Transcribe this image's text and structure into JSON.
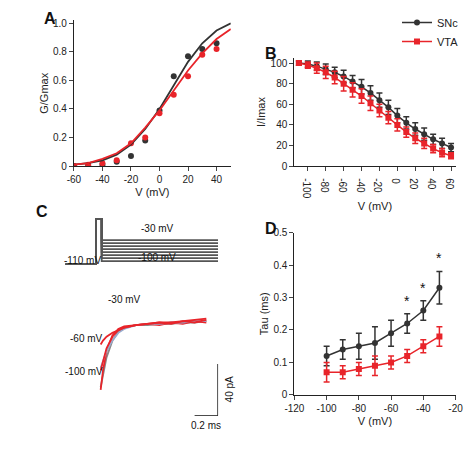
{
  "chart_data": [
    {
      "type": "scatter",
      "title": "A",
      "x_label": "V (mV)",
      "y_label": "G/Gmax",
      "xlim": [
        -60,
        50
      ],
      "xticks": [
        -60,
        -40,
        -20,
        0,
        20,
        40
      ],
      "ylim": [
        0,
        1.02
      ],
      "yticks": [
        0,
        0.2,
        0.4,
        0.6,
        0.8,
        {
          "value": 1,
          "label": "1.0"
        }
      ],
      "series": [
        {
          "name": "SNc",
          "color": "#333333",
          "marker": "circle",
          "x": [
            -60,
            -50,
            -40,
            -30,
            -20,
            -10,
            0,
            10,
            20,
            30,
            40
          ],
          "values": [
            0,
            0,
            0.01,
            0.03,
            0.07,
            0.18,
            0.39,
            0.63,
            0.77,
            0.82,
            0.86
          ]
        },
        {
          "name": "VTA",
          "color": "#e8242a",
          "marker": "circle",
          "x": [
            -60,
            -50,
            -40,
            -30,
            -20,
            -10,
            0,
            10,
            20,
            30,
            40
          ],
          "values": [
            0,
            0.01,
            0.02,
            0.04,
            0.16,
            0.2,
            0.37,
            0.5,
            0.63,
            0.78,
            0.82
          ]
        },
        {
          "color": "#333333",
          "line_style": "solid",
          "x": [
            -60,
            -50,
            -40,
            -30,
            -20,
            -10,
            0,
            10,
            20,
            30,
            40,
            50
          ],
          "values": [
            0.01,
            0.02,
            0.04,
            0.08,
            0.15,
            0.26,
            0.4,
            0.57,
            0.73,
            0.86,
            0.95,
            1.0
          ]
        },
        {
          "color": "#e8242a",
          "line_style": "solid",
          "x": [
            -60,
            -50,
            -40,
            -30,
            -20,
            -10,
            0,
            10,
            20,
            30,
            40,
            50
          ],
          "values": [
            0.01,
            0.02,
            0.05,
            0.09,
            0.16,
            0.27,
            0.39,
            0.53,
            0.67,
            0.79,
            0.89,
            0.96
          ]
        }
      ]
    },
    {
      "type": "line",
      "title": "B",
      "x_label": "V (mV)",
      "y_label": "I/Imax",
      "legend": "upper right",
      "xlim": [
        -115,
        65
      ],
      "xticks": [
        -100,
        -80,
        -60,
        -40,
        -20,
        0,
        20,
        40,
        60
      ],
      "ylim": [
        0,
        105
      ],
      "yticks": [
        0,
        20,
        40,
        60,
        80,
        100
      ],
      "x": [
        -110,
        -100,
        -90,
        -80,
        -70,
        -60,
        -50,
        -40,
        -30,
        -20,
        -10,
        0,
        10,
        20,
        30,
        40,
        50,
        60
      ],
      "series": [
        {
          "name": "SNc",
          "color": "#333333",
          "marker": "circle",
          "line_style": "solid",
          "values": [
            100,
            99,
            97,
            94,
            91,
            87,
            82,
            77,
            71,
            64,
            57,
            49,
            42,
            36,
            31,
            26,
            22,
            18
          ],
          "errors": [
            2,
            3,
            4,
            5,
            5,
            6,
            6,
            7,
            7,
            7,
            7,
            7,
            6,
            6,
            6,
            5,
            5,
            4
          ]
        },
        {
          "name": "VTA",
          "color": "#e8242a",
          "marker": "square",
          "line_style": "solid",
          "values": [
            100,
            98,
            95,
            91,
            86,
            80,
            74,
            68,
            61,
            54,
            47,
            40,
            33,
            27,
            22,
            17,
            13,
            10
          ],
          "errors": [
            2,
            3,
            5,
            6,
            6,
            7,
            7,
            7,
            7,
            6,
            6,
            6,
            5,
            5,
            5,
            4,
            4,
            3
          ]
        }
      ]
    },
    {
      "type": "line",
      "title": "C",
      "tick_labels": false,
      "xlim": [
        0,
        4
      ],
      "ylim": [
        -130,
        50
      ],
      "x": [
        0,
        0.8,
        0.8,
        0.95,
        0.95,
        4
      ],
      "series": [
        {
          "color": "#555555",
          "line_style": "solid",
          "values": [
            -110,
            -110,
            40,
            40,
            -100,
            -100
          ]
        },
        {
          "color": "#555555",
          "line_style": "solid",
          "values": [
            -110,
            -110,
            40,
            40,
            -90,
            -90
          ]
        },
        {
          "color": "#555555",
          "line_style": "solid",
          "values": [
            -110,
            -110,
            40,
            40,
            -80,
            -80
          ]
        },
        {
          "color": "#555555",
          "line_style": "solid",
          "values": [
            -110,
            -110,
            40,
            40,
            -70,
            -70
          ]
        },
        {
          "color": "#555555",
          "line_style": "solid",
          "values": [
            -110,
            -110,
            40,
            40,
            -60,
            -60
          ]
        },
        {
          "color": "#555555",
          "line_style": "solid",
          "values": [
            -110,
            -110,
            40,
            40,
            -50,
            -50
          ]
        },
        {
          "color": "#555555",
          "line_style": "solid",
          "values": [
            -110,
            -110,
            40,
            40,
            -40,
            -40
          ]
        },
        {
          "color": "#555555",
          "line_style": "solid",
          "values": [
            -110,
            -110,
            40,
            40,
            -30,
            -30
          ]
        }
      ],
      "annotations": [
        {
          "text": "-30 mV",
          "x": 2.4,
          "y": -16
        },
        {
          "text": "-100 mV",
          "x": 2.4,
          "y": -114
        },
        {
          "text": "-110 mV",
          "x": 0.45,
          "y": -122
        }
      ]
    },
    {
      "type": "line",
      "tick_labels": false,
      "xlim": [
        -0.3,
        1.0
      ],
      "ylim": [
        -70,
        20
      ],
      "x": [
        0,
        0.02,
        0.05,
        0.1,
        0.15,
        0.2,
        0.3,
        0.4,
        0.5,
        0.6,
        0.7,
        0.8,
        0.9
      ],
      "series": [
        {
          "color": "#888888",
          "line_style": "solid",
          "values": [
            -48,
            -38,
            -25,
            -12,
            -5,
            -2,
            0,
            0,
            1,
            1,
            2,
            2,
            3
          ]
        },
        {
          "color": "#e8242a",
          "line_style": "solid",
          "values": [
            -50,
            -35,
            -20,
            -8,
            -3,
            -1,
            0,
            1,
            0,
            2,
            1,
            3,
            2
          ]
        },
        {
          "color": "#99aacc",
          "line_style": "solid",
          "values": [
            -33,
            -28,
            -20,
            -12,
            -6,
            -3,
            0,
            1,
            1,
            2,
            2,
            3,
            3
          ]
        },
        {
          "color": "#e8242a",
          "line_style": "solid",
          "values": [
            -35,
            -28,
            -18,
            -9,
            -4,
            -2,
            0,
            1,
            2,
            1,
            3,
            2,
            4
          ]
        },
        {
          "color": "#e8242a",
          "line_style": "solid",
          "values": [
            -15,
            -12,
            -9,
            -6,
            -4,
            -2,
            0,
            1,
            2,
            2,
            3,
            4,
            5
          ]
        }
      ],
      "annotations": [
        {
          "text": "-30 mV",
          "x": 0.2,
          "y": 14
        },
        {
          "text": "-60 mV",
          "x": -0.12,
          "y": -16
        },
        {
          "text": "-100 mV",
          "x": -0.14,
          "y": -42
        }
      ],
      "scale_bars": [
        {
          "label": "40 pA",
          "value": 40,
          "axis": "y"
        },
        {
          "label": "0.2 ms",
          "value": 0.2,
          "axis": "x"
        }
      ]
    },
    {
      "type": "line",
      "title": "D",
      "x_label": "V (mV)",
      "y_label": "Tau (ms)",
      "xlim": [
        -120,
        -20
      ],
      "xticks": [
        -120,
        -100,
        -80,
        -60,
        -40,
        -20
      ],
      "ylim": [
        0,
        0.5
      ],
      "yticks": [
        0,
        0.1,
        0.2,
        0.3,
        0.4,
        0.5
      ],
      "x": [
        -100,
        -90,
        -80,
        -70,
        -60,
        -50,
        -40,
        -30
      ],
      "series": [
        {
          "name": "SNc",
          "color": "#333333",
          "marker": "circle",
          "line_style": "solid",
          "values": [
            0.12,
            0.14,
            0.15,
            0.16,
            0.19,
            0.22,
            0.26,
            0.33
          ],
          "errors": [
            0.03,
            0.03,
            0.04,
            0.05,
            0.04,
            0.03,
            0.03,
            0.05
          ]
        },
        {
          "name": "VTA",
          "color": "#e8242a",
          "marker": "square",
          "line_style": "solid",
          "values": [
            0.07,
            0.07,
            0.08,
            0.09,
            0.1,
            0.12,
            0.15,
            0.18
          ],
          "errors": [
            0.03,
            0.02,
            0.02,
            0.03,
            0.02,
            0.02,
            0.02,
            0.03
          ]
        }
      ],
      "annotations": [
        {
          "text": "*",
          "x": -50,
          "y": 0.26
        },
        {
          "text": "*",
          "x": -40,
          "y": 0.3
        },
        {
          "text": "*",
          "x": -30,
          "y": 0.39
        }
      ]
    }
  ]
}
